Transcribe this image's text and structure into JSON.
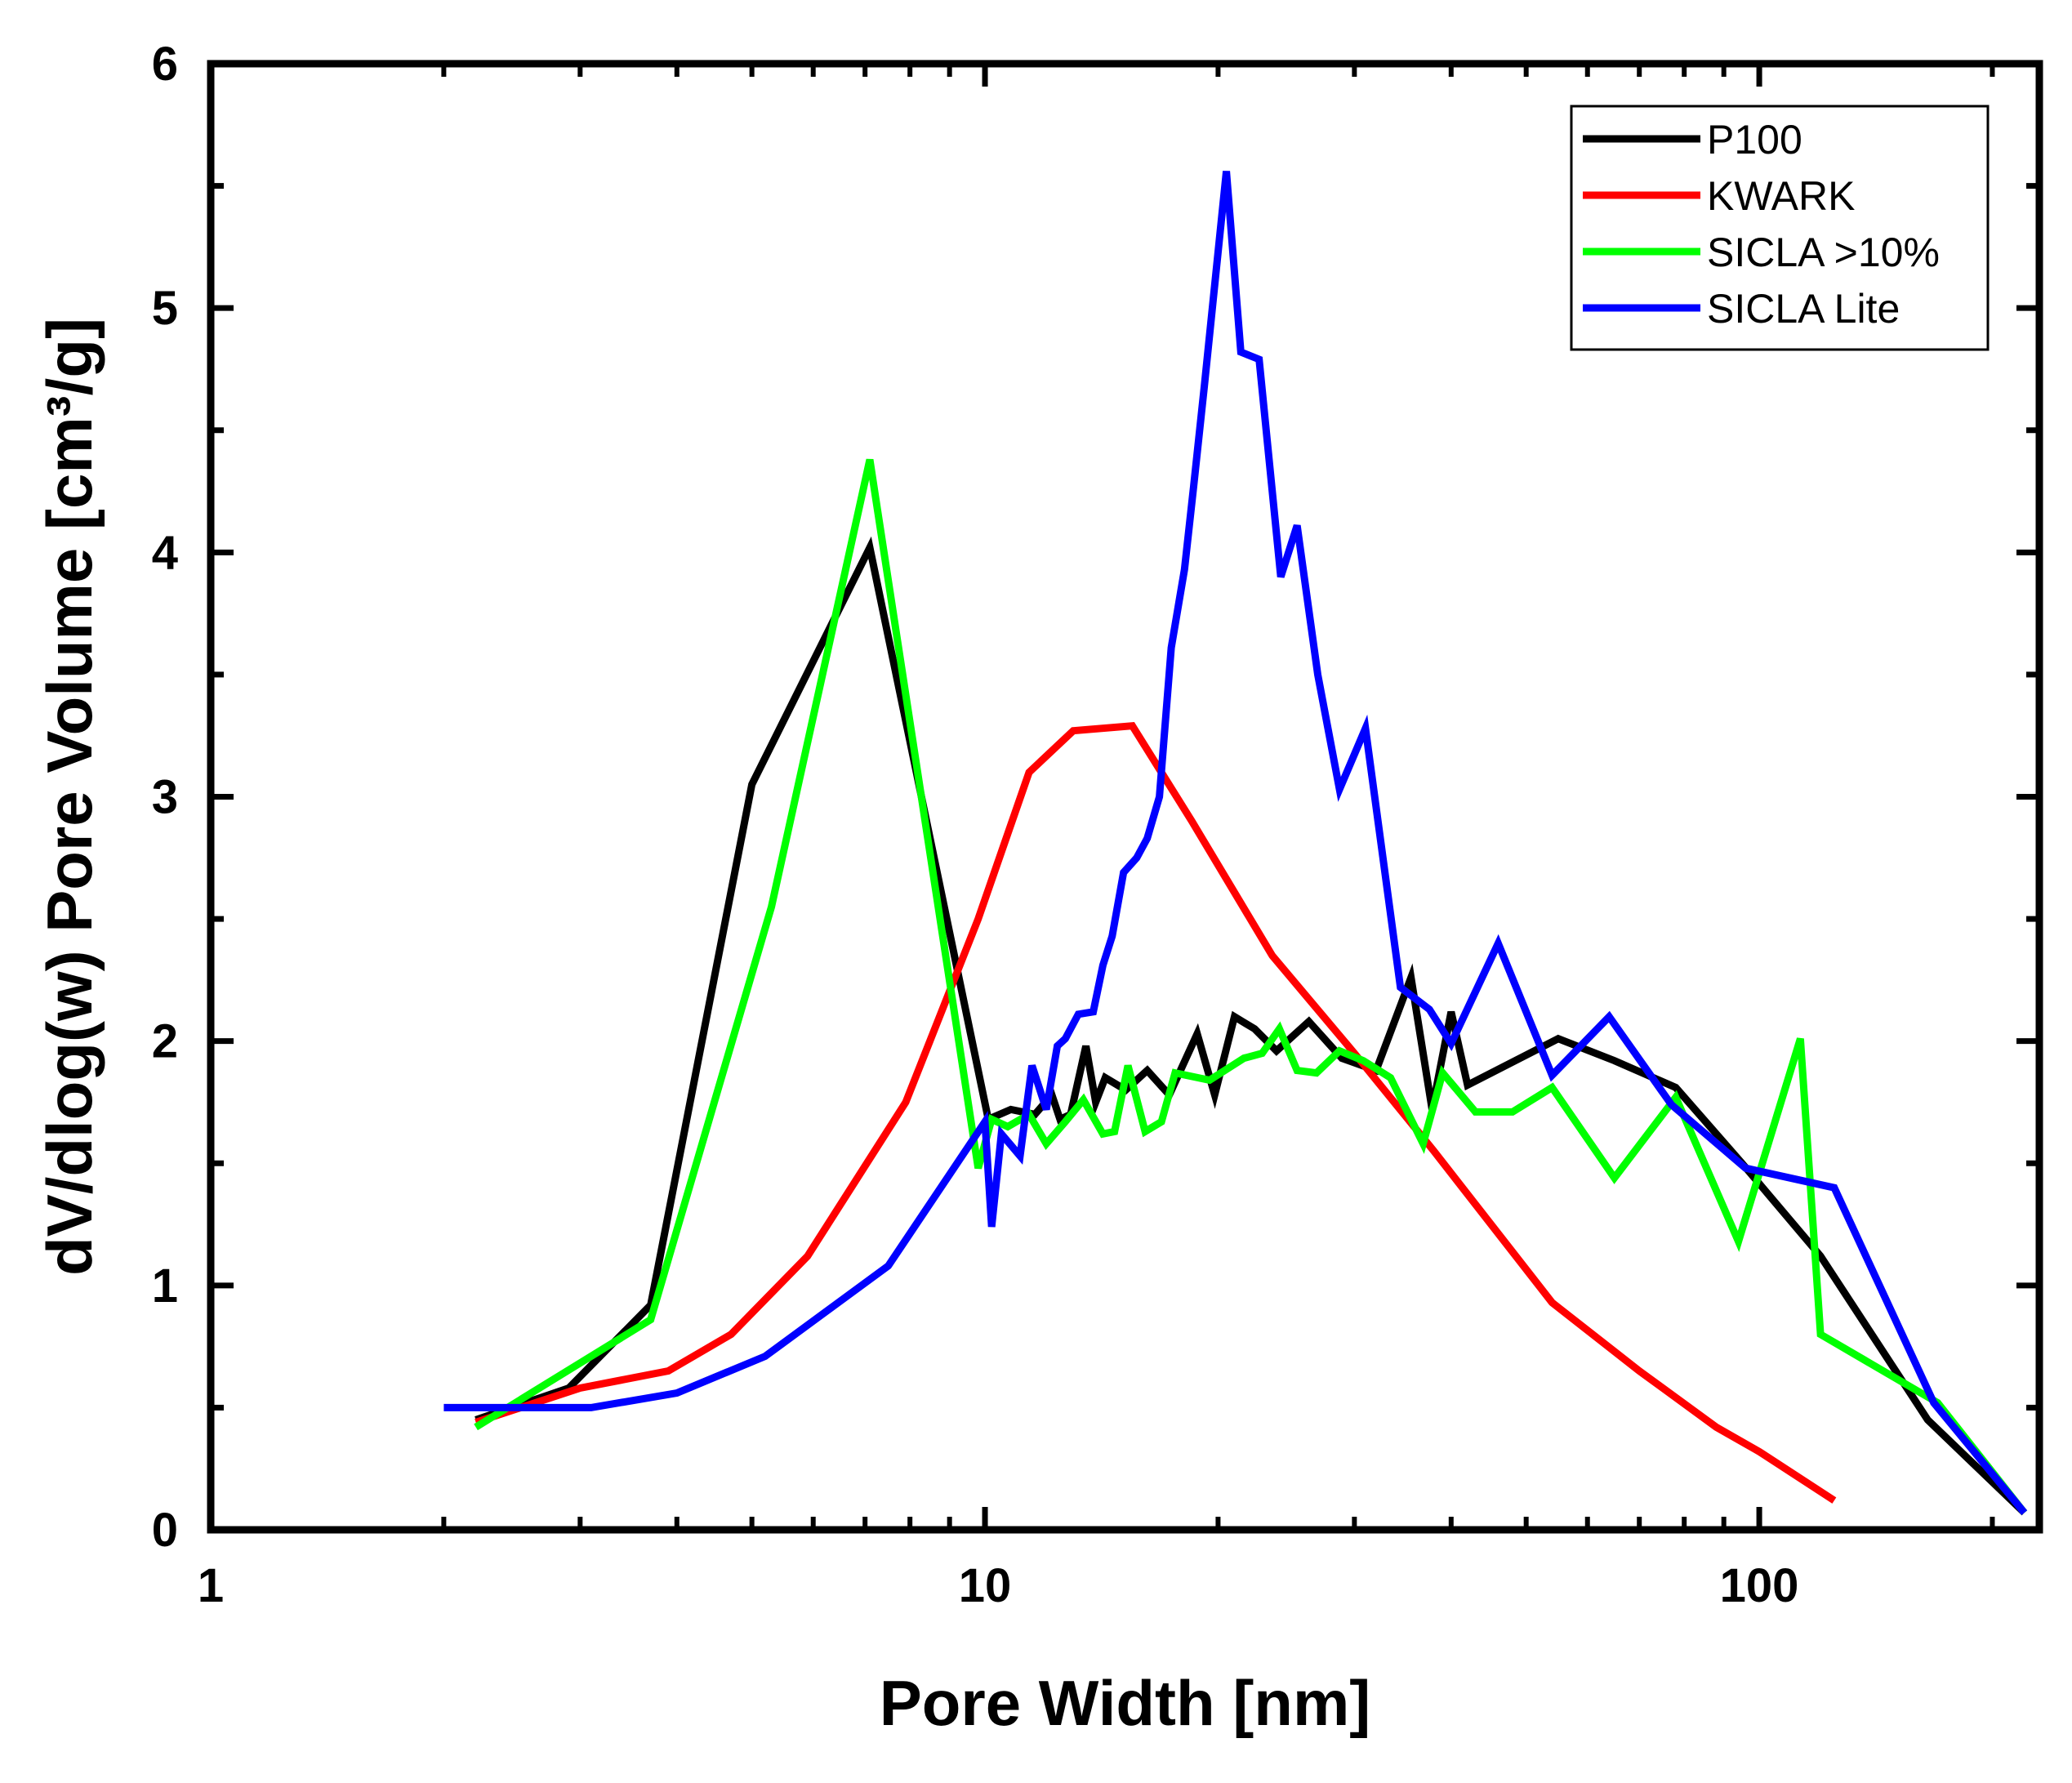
{
  "chart_data": {
    "type": "line",
    "title": "",
    "xlabel": "Pore Width [nm]",
    "ylabel": "dV/dlog(w) Pore Volume [cm³/g]",
    "xscale": "log",
    "xlim": [
      1,
      230
    ],
    "ylim": [
      0,
      6
    ],
    "xticks": [
      1,
      10,
      100
    ],
    "xtick_labels": [
      "1",
      "10",
      "100"
    ],
    "yticks": [
      0,
      1,
      2,
      3,
      4,
      5,
      6
    ],
    "ytick_labels": [
      "0",
      "1",
      "2",
      "3",
      "4",
      "5",
      "6"
    ],
    "legend_position": "top-right",
    "series": [
      {
        "name": "P100",
        "color": "#000000",
        "x": [
          2.2,
          2.9,
          3.7,
          5.0,
          7.1,
          10.1,
          10.8,
          11.6,
          12.2,
          12.5,
          12.9,
          13.5,
          13.9,
          14.3,
          15.2,
          16.2,
          17.3,
          18.8,
          19.8,
          21.0,
          22.3,
          23.8,
          26.2,
          28.9,
          32.0,
          35.5,
          37.8,
          40.0,
          42.0,
          55.0,
          65.0,
          78.0,
          95.0,
          120.0,
          165.0,
          220.0
        ],
        "y": [
          0.45,
          0.58,
          0.92,
          3.05,
          4.02,
          1.68,
          1.72,
          1.7,
          1.78,
          1.68,
          1.7,
          1.98,
          1.75,
          1.85,
          1.8,
          1.88,
          1.78,
          2.03,
          1.78,
          2.1,
          2.05,
          1.96,
          2.08,
          1.93,
          1.88,
          2.26,
          1.72,
          2.12,
          1.82,
          2.01,
          1.92,
          1.81,
          1.5,
          1.12,
          0.45,
          0.07
        ]
      },
      {
        "name": "KWARK",
        "color": "#ff0000",
        "x": [
          2.2,
          3.0,
          3.9,
          4.7,
          5.9,
          7.9,
          9.8,
          11.4,
          13.0,
          15.5,
          18.5,
          23.5,
          30.0,
          38.0,
          54.0,
          70.0,
          88.0,
          100.0,
          125.0
        ],
        "y": [
          0.44,
          0.58,
          0.65,
          0.8,
          1.12,
          1.75,
          2.5,
          3.1,
          3.27,
          3.29,
          2.9,
          2.35,
          1.95,
          1.55,
          0.93,
          0.65,
          0.42,
          0.32,
          0.12
        ]
      },
      {
        "name": "SICLA >10%",
        "color": "#00ff00",
        "x": [
          2.2,
          3.7,
          5.3,
          7.1,
          9.8,
          10.2,
          10.7,
          11.4,
          12.0,
          12.7,
          13.4,
          14.2,
          14.7,
          15.3,
          16.1,
          16.9,
          17.6,
          19.5,
          21.6,
          22.8,
          24.0,
          25.3,
          26.8,
          28.7,
          30.8,
          33.4,
          36.8,
          39.0,
          43.0,
          48.0,
          54.0,
          65.0,
          78.0,
          94.0,
          113.0,
          120.0,
          170.0,
          220.0
        ],
        "y": [
          0.42,
          0.86,
          2.55,
          4.38,
          1.48,
          1.68,
          1.65,
          1.7,
          1.58,
          1.67,
          1.76,
          1.62,
          1.63,
          1.9,
          1.63,
          1.67,
          1.87,
          1.84,
          1.93,
          1.95,
          2.05,
          1.88,
          1.87,
          1.96,
          1.92,
          1.85,
          1.58,
          1.87,
          1.71,
          1.71,
          1.81,
          1.44,
          1.77,
          1.18,
          2.01,
          0.8,
          0.52,
          0.07
        ]
      },
      {
        "name": "SICLA Lite",
        "color": "#0000ff",
        "x": [
          2.0,
          3.1,
          4.0,
          5.2,
          7.5,
          10.0,
          10.2,
          10.5,
          11.1,
          11.5,
          12.0,
          12.4,
          12.7,
          13.2,
          13.8,
          14.2,
          14.6,
          15.1,
          15.7,
          16.2,
          16.8,
          17.4,
          18.1,
          18.6,
          19.2,
          20.5,
          21.4,
          22.6,
          24.1,
          25.3,
          26.9,
          28.7,
          31.0,
          34.4,
          37.5,
          40.0,
          46.0,
          54.0,
          64.0,
          77.0,
          96.0,
          125.0,
          168.0,
          220.0
        ],
        "y": [
          0.5,
          0.5,
          0.56,
          0.71,
          1.08,
          1.67,
          1.24,
          1.62,
          1.53,
          1.9,
          1.72,
          1.98,
          2.01,
          2.11,
          2.12,
          2.31,
          2.43,
          2.69,
          2.75,
          2.83,
          3.0,
          3.61,
          3.93,
          4.27,
          4.68,
          5.56,
          4.82,
          4.79,
          3.9,
          4.11,
          3.5,
          3.03,
          3.28,
          2.22,
          2.13,
          1.99,
          2.4,
          1.86,
          2.1,
          1.74,
          1.48,
          1.4,
          0.52,
          0.07
        ]
      }
    ]
  }
}
